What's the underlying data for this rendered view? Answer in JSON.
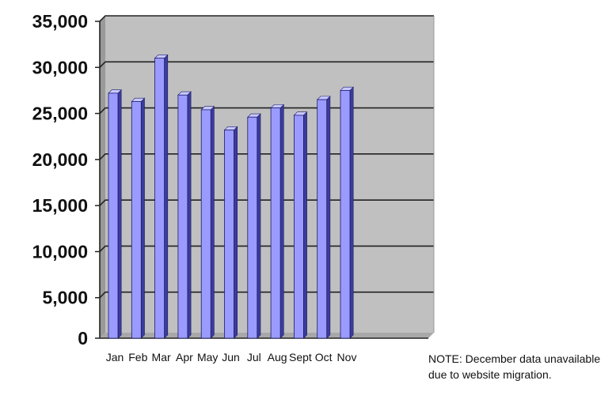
{
  "chart_data": {
    "type": "bar",
    "categories": [
      "Jan",
      "Feb",
      "Mar",
      "Apr",
      "May",
      "Jun",
      "Jul",
      "Aug",
      "Sept",
      "Oct",
      "Nov"
    ],
    "values": [
      26600,
      25700,
      30400,
      26400,
      24800,
      22600,
      24000,
      25000,
      24200,
      25900,
      26900
    ],
    "title": "",
    "xlabel": "",
    "ylabel": "",
    "ylim": [
      0,
      35000
    ],
    "yticks": [
      "0",
      "5,000",
      "10,000",
      "15,000",
      "20,000",
      "25,000",
      "30,000",
      "35,000"
    ],
    "grid": true,
    "legend": "none",
    "colors": {
      "bar_front": "#9b9bff",
      "bar_side": "#3c3c9c",
      "bar_top": "#c8c8ff",
      "plot_background": "#c0c0c0",
      "gridline": "#222222"
    },
    "annotation": "NOTE: December data unavailable due to website migration."
  }
}
